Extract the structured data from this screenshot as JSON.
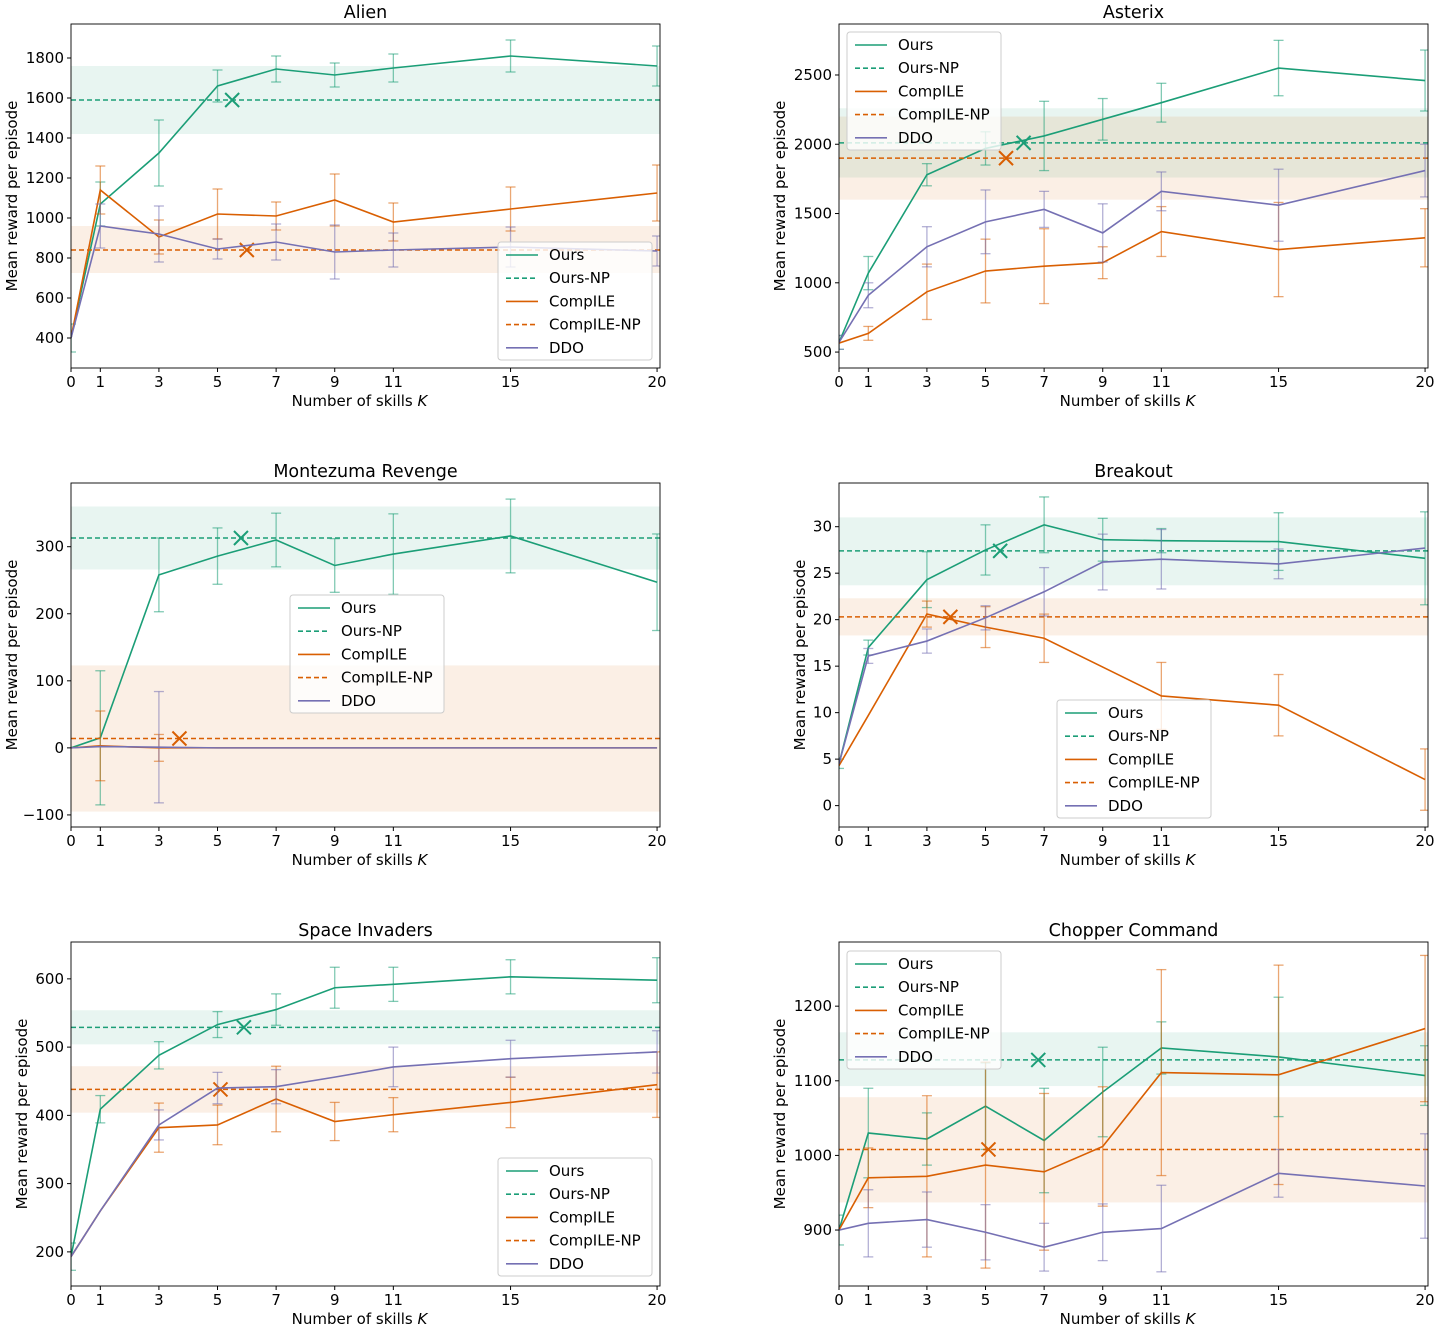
{
  "colors": {
    "ours": "#1b9e77",
    "compile": "#d95f02",
    "ddo": "#7570b3"
  },
  "chart_data": [
    {
      "type": "line",
      "title": "Alien",
      "xlabel": "Number of skills K",
      "ylabel": "Mean reward per episode",
      "x": [
        0,
        1,
        3,
        5,
        7,
        9,
        11,
        15,
        20
      ],
      "xlim": [
        0,
        20.1
      ],
      "ylim": [
        250,
        1970
      ],
      "yticks": [
        400,
        600,
        800,
        1000,
        1200,
        1400,
        1600,
        1800
      ],
      "legend_position": "lower-right",
      "grid": false,
      "series": [
        {
          "name": "Ours",
          "style": "solid",
          "color": "#1b9e77",
          "values": [
            400,
            1070,
            1325,
            1660,
            1745,
            1715,
            1750,
            1810,
            1760
          ],
          "errors": [
            70,
            110,
            165,
            80,
            65,
            60,
            70,
            80,
            100
          ]
        },
        {
          "name": "Ours-NP",
          "style": "dashed",
          "color": "#1b9e77",
          "value": 1590,
          "band": [
            1420,
            1760
          ],
          "marker_x": 5.5
        },
        {
          "name": "CompILE",
          "style": "solid",
          "color": "#d95f02",
          "values": [
            400,
            1140,
            905,
            1020,
            1010,
            1090,
            980,
            1045,
            1125
          ],
          "errors": [
            0,
            120,
            85,
            125,
            70,
            130,
            95,
            110,
            140
          ]
        },
        {
          "name": "CompILE-NP",
          "style": "dashed",
          "color": "#d95f02",
          "value": 840,
          "band": [
            725,
            960
          ],
          "marker_x": 6.0
        },
        {
          "name": "DDO",
          "style": "solid",
          "color": "#7570b3",
          "values": [
            400,
            960,
            920,
            845,
            880,
            830,
            840,
            855,
            835
          ],
          "errors": [
            0,
            110,
            140,
            50,
            90,
            135,
            85,
            100,
            75
          ]
        }
      ]
    },
    {
      "type": "line",
      "title": "Asterix",
      "xlabel": "Number of skills K",
      "ylabel": "Mean reward per episode",
      "x": [
        0,
        1,
        3,
        5,
        7,
        9,
        11,
        15,
        20
      ],
      "xlim": [
        0,
        20.1
      ],
      "ylim": [
        385,
        2868
      ],
      "yticks": [
        500,
        1000,
        1500,
        2000,
        2500
      ],
      "legend_position": "upper-left",
      "grid": false,
      "series": [
        {
          "name": "Ours",
          "style": "solid",
          "color": "#1b9e77",
          "values": [
            570,
            1070,
            1780,
            1970,
            2060,
            2180,
            2300,
            2550,
            2460
          ],
          "errors": [
            50,
            120,
            80,
            120,
            250,
            150,
            140,
            200,
            220
          ]
        },
        {
          "name": "Ours-NP",
          "style": "dashed",
          "color": "#1b9e77",
          "value": 2010,
          "band": [
            1760,
            2260
          ],
          "marker_x": 6.3
        },
        {
          "name": "CompILE",
          "style": "solid",
          "color": "#d95f02",
          "values": [
            565,
            635,
            935,
            1085,
            1120,
            1145,
            1370,
            1240,
            1325
          ],
          "errors": [
            0,
            50,
            200,
            230,
            270,
            115,
            180,
            340,
            210
          ]
        },
        {
          "name": "CompILE-NP",
          "style": "dashed",
          "color": "#d95f02",
          "value": 1900,
          "band": [
            1600,
            2200
          ],
          "marker_x": 5.7
        },
        {
          "name": "DDO",
          "style": "solid",
          "color": "#7570b3",
          "values": [
            570,
            910,
            1260,
            1440,
            1530,
            1360,
            1660,
            1560,
            1810
          ],
          "errors": [
            50,
            90,
            145,
            230,
            130,
            210,
            140,
            260,
            190
          ]
        }
      ]
    },
    {
      "type": "line",
      "title": "Montezuma Revenge",
      "xlabel": "Number of skills K",
      "ylabel": "Mean reward per episode",
      "x": [
        0,
        1,
        3,
        5,
        7,
        9,
        11,
        15,
        20
      ],
      "xlim": [
        0,
        20.1
      ],
      "ylim": [
        -118,
        395
      ],
      "yticks": [
        -100,
        0,
        100,
        200,
        300
      ],
      "legend_position": "center",
      "grid": false,
      "series": [
        {
          "name": "Ours",
          "style": "solid",
          "color": "#1b9e77",
          "values": [
            0,
            15,
            258,
            286,
            310,
            272,
            289,
            316,
            247
          ],
          "errors": [
            0,
            100,
            55,
            42,
            40,
            40,
            60,
            55,
            72
          ]
        },
        {
          "name": "Ours-NP",
          "style": "dashed",
          "color": "#1b9e77",
          "value": 313,
          "band": [
            266,
            360
          ],
          "marker_x": 5.8
        },
        {
          "name": "CompILE",
          "style": "solid",
          "color": "#d95f02",
          "values": [
            0,
            3,
            0,
            0,
            0,
            0,
            0,
            0,
            0
          ],
          "errors": [
            0,
            52,
            20,
            0,
            0,
            0,
            0,
            0,
            0
          ]
        },
        {
          "name": "CompILE-NP",
          "style": "dashed",
          "color": "#d95f02",
          "value": 14,
          "band": [
            -95,
            123
          ],
          "marker_x": 3.7
        },
        {
          "name": "DDO",
          "style": "solid",
          "color": "#7570b3",
          "values": [
            0,
            2,
            1,
            0,
            0,
            0,
            0,
            0,
            0
          ],
          "errors": [
            0,
            0,
            83,
            0,
            0,
            0,
            0,
            0,
            0
          ]
        }
      ]
    },
    {
      "type": "line",
      "title": "Breakout",
      "xlabel": "Number of skills K",
      "ylabel": "Mean reward per episode",
      "x": [
        0,
        1,
        3,
        5,
        7,
        9,
        11,
        15,
        20
      ],
      "xlim": [
        0,
        20.1
      ],
      "ylim": [
        -2.3,
        34.7
      ],
      "yticks": [
        0,
        5,
        10,
        15,
        20,
        25,
        30
      ],
      "legend_position": "lower-center",
      "grid": false,
      "series": [
        {
          "name": "Ours",
          "style": "solid",
          "color": "#1b9e77",
          "values": [
            4.5,
            17,
            24.3,
            27.5,
            30.2,
            28.6,
            28.5,
            28.4,
            26.6
          ],
          "errors": [
            0.5,
            0.8,
            3,
            2.7,
            3,
            2.3,
            1.3,
            3.1,
            5
          ]
        },
        {
          "name": "Ours-NP",
          "style": "dashed",
          "color": "#1b9e77",
          "value": 27.4,
          "band": [
            23.7,
            31
          ],
          "marker_x": 5.5
        },
        {
          "name": "CompILE",
          "style": "solid",
          "color": "#d95f02",
          "values": [
            4.3,
            9.7,
            20.6,
            19.2,
            18,
            14.9,
            11.8,
            10.8,
            2.8
          ],
          "errors": [
            0,
            0,
            1.4,
            2.2,
            2.6,
            0,
            3.6,
            3.3,
            3.3
          ]
        },
        {
          "name": "CompILE-NP",
          "style": "dashed",
          "color": "#d95f02",
          "value": 20.3,
          "band": [
            18.3,
            22.3
          ],
          "marker_x": 3.8
        },
        {
          "name": "DDO",
          "style": "solid",
          "color": "#7570b3",
          "values": [
            4.5,
            16.1,
            17.7,
            20.2,
            23,
            26.2,
            26.5,
            26,
            27.7
          ],
          "errors": [
            0,
            0.8,
            1.3,
            1.3,
            2.6,
            3,
            3.2,
            1.6,
            0
          ]
        }
      ]
    },
    {
      "type": "line",
      "title": "Space Invaders",
      "xlabel": "Number of skills K",
      "ylabel": "Mean reward per episode",
      "x": [
        0,
        1,
        3,
        5,
        7,
        9,
        11,
        15,
        20
      ],
      "xlim": [
        0,
        20.1
      ],
      "ylim": [
        150,
        654
      ],
      "yticks": [
        200,
        300,
        400,
        500,
        600
      ],
      "legend_position": "lower-right",
      "grid": false,
      "series": [
        {
          "name": "Ours",
          "style": "solid",
          "color": "#1b9e77",
          "values": [
            193,
            409,
            488,
            533,
            555,
            587,
            592,
            603,
            598
          ],
          "errors": [
            20,
            20,
            20,
            19,
            23,
            30,
            25,
            25,
            33
          ]
        },
        {
          "name": "Ours-NP",
          "style": "dashed",
          "color": "#1b9e77",
          "value": 529,
          "band": [
            504,
            554
          ],
          "marker_x": 5.9
        },
        {
          "name": "CompILE",
          "style": "solid",
          "color": "#d95f02",
          "values": [
            193,
            260,
            382,
            386,
            424,
            391,
            401,
            419,
            445
          ],
          "errors": [
            0,
            0,
            36,
            29,
            48,
            28,
            25,
            37,
            48
          ]
        },
        {
          "name": "CompILE-NP",
          "style": "dashed",
          "color": "#d95f02",
          "value": 438,
          "band": [
            404,
            472
          ],
          "marker_x": 5.1
        },
        {
          "name": "DDO",
          "style": "solid",
          "color": "#7570b3",
          "values": [
            193,
            260,
            386,
            440,
            442,
            456,
            471,
            483,
            493
          ],
          "errors": [
            0,
            0,
            22,
            23,
            25,
            0,
            29,
            27,
            31
          ]
        }
      ]
    },
    {
      "type": "line",
      "title": "Chopper Command",
      "xlabel": "Number of skills K",
      "ylabel": "Mean reward per episode",
      "x": [
        0,
        1,
        3,
        5,
        7,
        9,
        11,
        15,
        20
      ],
      "xlim": [
        0,
        20.1
      ],
      "ylim": [
        825,
        1286
      ],
      "yticks": [
        900,
        1000,
        1100,
        1200
      ],
      "legend_position": "upper-left",
      "grid": false,
      "series": [
        {
          "name": "Ours",
          "style": "solid",
          "color": "#1b9e77",
          "values": [
            900,
            1030,
            1022,
            1066,
            1020,
            1085,
            1144,
            1132,
            1107
          ],
          "errors": [
            20,
            60,
            35,
            58,
            70,
            60,
            35,
            80,
            40
          ]
        },
        {
          "name": "Ours-NP",
          "style": "dashed",
          "color": "#1b9e77",
          "value": 1128,
          "band": [
            1093,
            1165
          ],
          "marker_x": 6.8
        },
        {
          "name": "CompILE",
          "style": "solid",
          "color": "#d95f02",
          "values": [
            900,
            970,
            972,
            987,
            978,
            1012,
            1111,
            1108,
            1170
          ],
          "errors": [
            0,
            40,
            108,
            138,
            105,
            80,
            138,
            147,
            98
          ]
        },
        {
          "name": "CompILE-NP",
          "style": "dashed",
          "color": "#d95f02",
          "value": 1008,
          "band": [
            937,
            1078
          ],
          "marker_x": 5.1
        },
        {
          "name": "DDO",
          "style": "solid",
          "color": "#7570b3",
          "values": [
            900,
            909,
            914,
            897,
            877,
            897,
            902,
            976,
            959
          ],
          "errors": [
            0,
            45,
            37,
            37,
            32,
            38,
            58,
            32,
            70
          ]
        }
      ]
    }
  ]
}
